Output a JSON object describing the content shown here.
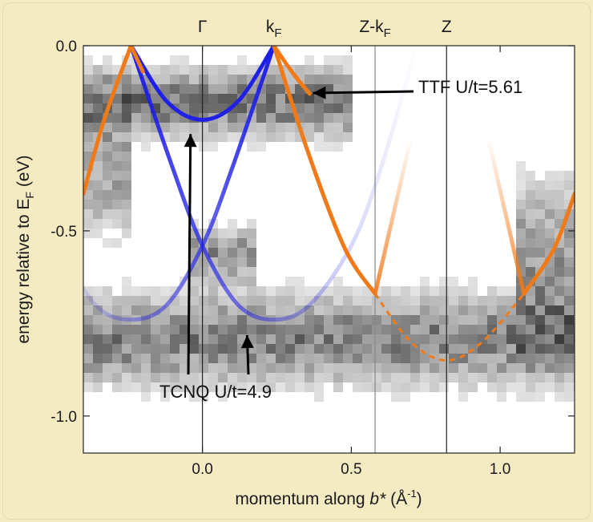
{
  "chart_data": {
    "type": "line",
    "title": "",
    "xlabel": {
      "prefix": "momentum along ",
      "italic": "b*",
      "unit_open": " (Å",
      "unit_sup": "-1",
      "unit_close": ")"
    },
    "ylabel": {
      "prefix": "energy relative to E",
      "sub": "F",
      "suffix": " (eV)"
    },
    "xlim": [
      -0.4,
      1.25
    ],
    "ylim": [
      -1.1,
      0.0
    ],
    "x_ticks": [
      {
        "value": 0.0,
        "label": "0.0"
      },
      {
        "value": 0.5,
        "label": "0.5"
      },
      {
        "value": 1.0,
        "label": "1.0"
      }
    ],
    "y_ticks": [
      {
        "value": 0.0,
        "label": "0.0"
      },
      {
        "value": -0.5,
        "label": "-0.5"
      },
      {
        "value": -1.0,
        "label": "-1.0"
      }
    ],
    "top_markers": [
      {
        "x": 0.0,
        "label": "Γ",
        "sub": ""
      },
      {
        "x": 0.24,
        "label": "k",
        "sub": "F"
      },
      {
        "x": 0.58,
        "label": "Z-k",
        "sub": "F"
      },
      {
        "x": 0.82,
        "label": "Z",
        "sub": ""
      }
    ],
    "series": [
      {
        "group": "TCNQ",
        "color": "#1f1fe6",
        "curves": [
          {
            "x": [
              -0.24,
              -0.12,
              0.0,
              0.12,
              0.24
            ],
            "y": [
              0.0,
              -0.15,
              -0.2,
              -0.15,
              0.0
            ]
          },
          {
            "x": [
              -0.24,
              -0.1,
              0.0,
              0.12,
              0.24,
              0.36,
              0.5,
              0.6,
              0.72
            ],
            "y": [
              0.0,
              -0.33,
              -0.54,
              -0.7,
              -0.74,
              -0.7,
              -0.54,
              -0.33,
              0.0
            ]
          },
          {
            "x": [
              -0.48,
              -0.36,
              -0.24,
              -0.12,
              0.0,
              0.1,
              0.24
            ],
            "y": [
              -0.54,
              -0.7,
              -0.74,
              -0.7,
              -0.54,
              -0.33,
              0.0
            ]
          }
        ]
      },
      {
        "group": "TTF",
        "color": "#f07a18",
        "curves": [
          {
            "x": [
              -0.4,
              -0.33,
              -0.24
            ],
            "y": [
              -0.4,
              -0.2,
              0.0
            ]
          },
          {
            "x": [
              -0.24,
              -0.2
            ],
            "y": [
              0.0,
              -0.07
            ]
          },
          {
            "x": [
              0.24,
              0.3,
              0.36
            ],
            "y": [
              0.0,
              -0.07,
              -0.13
            ]
          },
          {
            "x": [
              0.24,
              0.36,
              0.48,
              0.58
            ],
            "y": [
              0.0,
              -0.3,
              -0.55,
              -0.67
            ]
          },
          {
            "x": [
              0.58,
              0.7
            ],
            "y": [
              -0.67,
              -0.25
            ]
          },
          {
            "x": [
              0.96,
              1.08
            ],
            "y": [
              -0.25,
              -0.67
            ]
          },
          {
            "x": [
              1.08,
              1.18,
              1.25
            ],
            "y": [
              -0.67,
              -0.55,
              -0.4
            ]
          }
        ],
        "dashed": {
          "x": [
            0.58,
            0.7,
            0.82,
            0.94,
            1.08
          ],
          "y": [
            -0.67,
            -0.8,
            -0.85,
            -0.8,
            -0.67
          ]
        }
      }
    ],
    "annotations": [
      {
        "id": "ttf",
        "text": "TTF U/t=5.61",
        "arrow_to": {
          "x": 0.36,
          "y": -0.13
        }
      },
      {
        "id": "tcnq",
        "text": "TCNQ U/t=4.9",
        "arrows_to": [
          {
            "x": -0.04,
            "y": -0.23
          },
          {
            "x": 0.15,
            "y": -0.76
          }
        ]
      }
    ]
  }
}
